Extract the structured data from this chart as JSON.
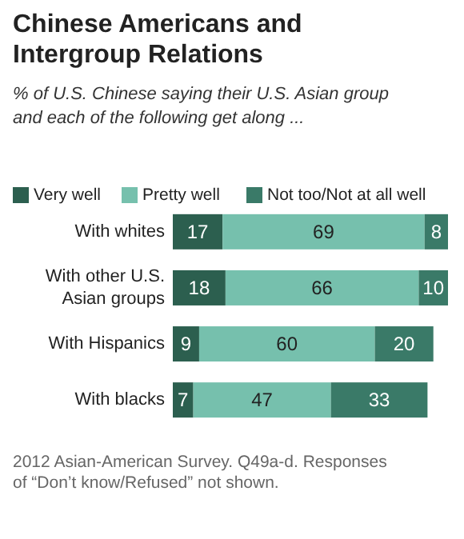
{
  "chart_data": {
    "type": "bar",
    "orientation": "horizontal",
    "stacked": true,
    "title": "Chinese Americans and Intergroup Relations",
    "subtitle": "% of U.S. Chinese saying their U.S. Asian group and each of the following get along ...",
    "categories": [
      "With whites",
      "With other U.S. Asian groups",
      "With Hispanics",
      "With blacks"
    ],
    "series": [
      {
        "name": "Very well",
        "color": "#2c5f4f",
        "values": [
          17,
          18,
          9,
          7
        ]
      },
      {
        "name": "Pretty well",
        "color": "#76c0ad",
        "values": [
          69,
          66,
          60,
          47
        ]
      },
      {
        "name": "Not too/Not at all well",
        "color": "#3a7a68",
        "values": [
          8,
          10,
          20,
          33
        ]
      }
    ],
    "data_labels": true,
    "legend": "top",
    "annotations": [
      "2012 Asian-American Survey. Q49a-d. Responses of “Don’t know/Refused” not shown."
    ]
  }
}
